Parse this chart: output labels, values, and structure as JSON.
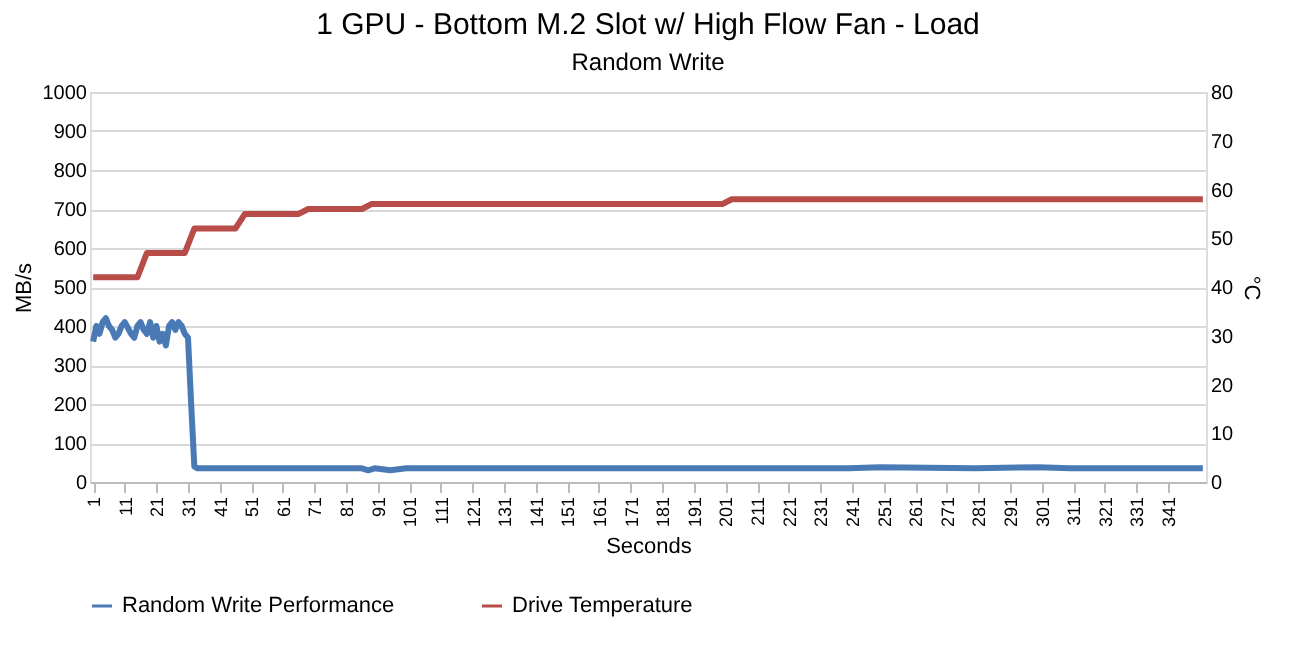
{
  "chart_data": {
    "type": "line",
    "title": "1 GPU - Bottom M.2 Slot w/ High Flow Fan  - Load",
    "subtitle": "Random Write",
    "xlabel": "Seconds",
    "ylabel": "MB/s",
    "y2label": "°C",
    "xlim": [
      0,
      353
    ],
    "xticks": [
      1,
      11,
      21,
      31,
      41,
      51,
      61,
      71,
      81,
      91,
      101,
      111,
      121,
      131,
      141,
      151,
      161,
      171,
      181,
      191,
      201,
      211,
      221,
      231,
      241,
      251,
      261,
      271,
      281,
      291,
      301,
      311,
      321,
      331,
      341
    ],
    "ylim": [
      0,
      1000
    ],
    "yticks": [
      0,
      100,
      200,
      300,
      400,
      500,
      600,
      700,
      800,
      900,
      1000
    ],
    "y2lim": [
      0,
      80
    ],
    "y2ticks": [
      0,
      10,
      20,
      30,
      40,
      50,
      60,
      70,
      80
    ],
    "grid": "y",
    "legend": "bottom",
    "marker": "none",
    "line_style": "solid",
    "series": [
      {
        "name": "Random Write Performance",
        "color": "#4a7ab5",
        "x": [
          1,
          2,
          3,
          4,
          5,
          6,
          7,
          8,
          9,
          10,
          11,
          12,
          13,
          14,
          15,
          16,
          17,
          18,
          19,
          20,
          21,
          22,
          23,
          24,
          25,
          26,
          27,
          28,
          29,
          30,
          31,
          32,
          33,
          34,
          35,
          86,
          88,
          90,
          95,
          100,
          110,
          125,
          200,
          240,
          250,
          280,
          300,
          310,
          320,
          352
        ],
        "values": [
          360,
          400,
          380,
          410,
          420,
          400,
          390,
          370,
          380,
          400,
          410,
          395,
          380,
          370,
          400,
          410,
          390,
          380,
          410,
          370,
          400,
          360,
          380,
          350,
          400,
          410,
          390,
          410,
          400,
          380,
          370,
          200,
          40,
          35,
          35,
          35,
          30,
          35,
          30,
          35,
          35,
          35,
          35,
          35,
          38,
          35,
          38,
          35,
          35,
          35
        ]
      },
      {
        "name": "Drive Temperature",
        "color": "#b84c48",
        "axis": "y2",
        "x": [
          1,
          15,
          18,
          30,
          33,
          46,
          49,
          66,
          69,
          86,
          89,
          200,
          203,
          352
        ],
        "values": [
          42,
          42,
          47,
          47,
          52,
          52,
          55,
          55,
          56,
          56,
          57,
          57,
          58,
          58
        ]
      }
    ]
  }
}
